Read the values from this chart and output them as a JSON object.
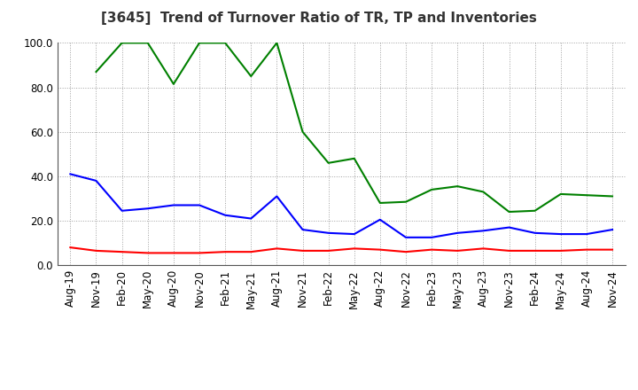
{
  "title": "[3645]  Trend of Turnover Ratio of TR, TP and Inventories",
  "x_labels": [
    "Aug-19",
    "Nov-19",
    "Feb-20",
    "May-20",
    "Aug-20",
    "Nov-20",
    "Feb-21",
    "May-21",
    "Aug-21",
    "Nov-21",
    "Feb-22",
    "May-22",
    "Aug-22",
    "Nov-22",
    "Feb-23",
    "May-23",
    "Aug-23",
    "Nov-23",
    "Feb-24",
    "May-24",
    "Aug-24",
    "Nov-24"
  ],
  "trade_receivables": [
    8.0,
    6.5,
    6.0,
    5.5,
    5.5,
    5.5,
    6.0,
    6.0,
    7.5,
    6.5,
    6.5,
    7.5,
    7.0,
    6.0,
    7.0,
    6.5,
    7.5,
    6.5,
    6.5,
    6.5,
    7.0,
    7.0
  ],
  "trade_payables": [
    41.0,
    38.0,
    24.5,
    25.5,
    27.0,
    27.0,
    22.5,
    21.0,
    31.0,
    16.0,
    14.5,
    14.0,
    20.5,
    12.5,
    12.5,
    14.5,
    15.5,
    17.0,
    14.5,
    14.0,
    14.0,
    16.0
  ],
  "inventories": [
    null,
    87.0,
    100.0,
    100.0,
    81.5,
    100.0,
    100.0,
    85.0,
    100.0,
    60.0,
    46.0,
    48.0,
    28.0,
    28.5,
    34.0,
    35.5,
    33.0,
    24.0,
    24.5,
    32.0,
    31.5,
    31.0
  ],
  "ylim": [
    0.0,
    100.0
  ],
  "yticks": [
    0.0,
    20.0,
    40.0,
    60.0,
    80.0,
    100.0
  ],
  "color_tr": "#ff0000",
  "color_tp": "#0000ff",
  "color_inv": "#008000",
  "background_color": "#ffffff",
  "grid_color": "#888888",
  "title_fontsize": 11,
  "tick_fontsize": 8.5,
  "legend_fontsize": 9
}
